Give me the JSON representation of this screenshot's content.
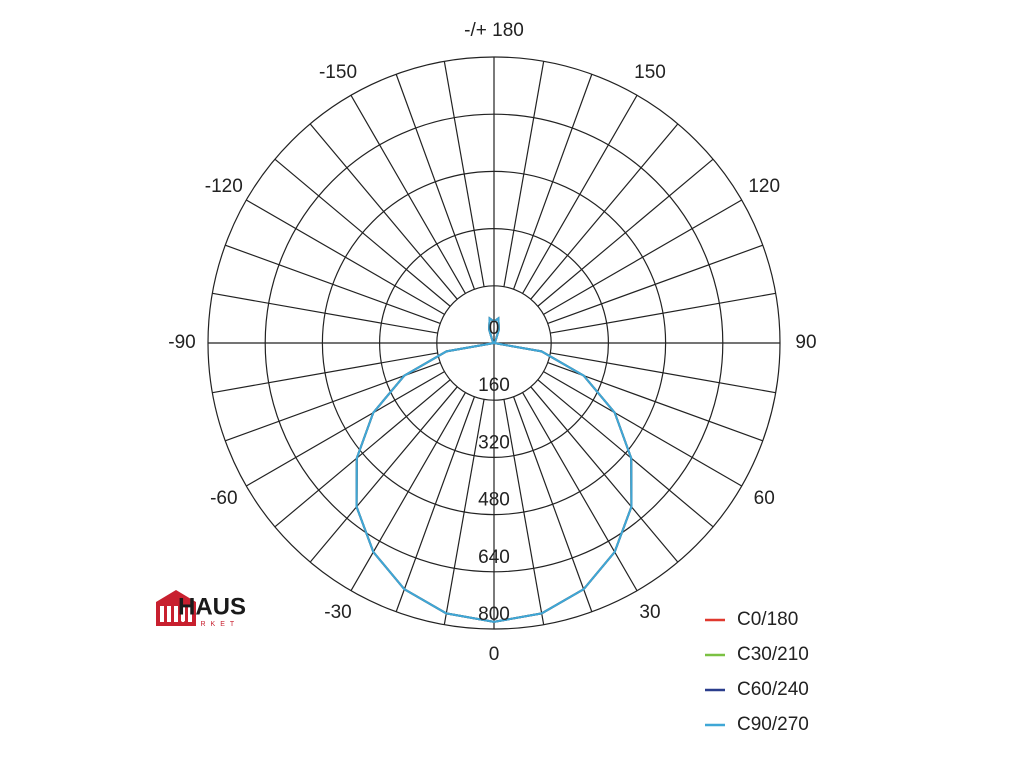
{
  "chart_data": {
    "type": "polar",
    "theta": [
      -180,
      -170,
      -160,
      -150,
      -140,
      -130,
      -120,
      -110,
      -100,
      -90,
      -80,
      -70,
      -60,
      -50,
      -40,
      -30,
      -20,
      -10,
      0,
      10,
      20,
      30,
      40,
      50,
      60,
      70,
      80,
      90,
      100,
      110,
      120,
      130,
      140,
      150,
      160,
      170,
      180
    ],
    "series": [
      {
        "name": "C0/180",
        "color": "#e0392e",
        "values": [
          60,
          70,
          40,
          10,
          5,
          3,
          2,
          1,
          0,
          0,
          135,
          267,
          390,
          501,
          598,
          675,
          733,
          768,
          780,
          768,
          733,
          675,
          598,
          501,
          390,
          267,
          135,
          0,
          0,
          1,
          2,
          3,
          5,
          10,
          40,
          70,
          60
        ]
      },
      {
        "name": "C30/210",
        "color": "#7bc143",
        "values": [
          60,
          70,
          40,
          10,
          5,
          3,
          2,
          1,
          0,
          0,
          135,
          267,
          390,
          501,
          598,
          675,
          733,
          768,
          780,
          768,
          733,
          675,
          598,
          501,
          390,
          267,
          135,
          0,
          0,
          1,
          2,
          3,
          5,
          10,
          40,
          70,
          60
        ]
      },
      {
        "name": "C60/240",
        "color": "#2a3d8c",
        "values": [
          60,
          70,
          40,
          10,
          5,
          3,
          2,
          1,
          0,
          0,
          135,
          267,
          390,
          501,
          598,
          675,
          733,
          768,
          780,
          768,
          733,
          675,
          598,
          501,
          390,
          267,
          135,
          0,
          0,
          1,
          2,
          3,
          5,
          10,
          40,
          70,
          60
        ]
      },
      {
        "name": "C90/270",
        "color": "#3fa7d6",
        "values": [
          60,
          70,
          40,
          10,
          5,
          3,
          2,
          1,
          0,
          0,
          135,
          267,
          390,
          501,
          598,
          675,
          733,
          768,
          780,
          768,
          733,
          675,
          598,
          501,
          390,
          267,
          135,
          0,
          0,
          1,
          2,
          3,
          5,
          10,
          40,
          70,
          60
        ]
      }
    ],
    "rlim": [
      0,
      800
    ],
    "rticks": [
      0,
      160,
      320,
      480,
      640,
      800
    ],
    "thetaticks": [
      0,
      30,
      60,
      90,
      120,
      150,
      {
        "value": 180,
        "label": "-/+ 180"
      },
      -150,
      -120,
      -90,
      -60,
      -30
    ],
    "theta_grid": [
      -170,
      -160,
      -150,
      -140,
      -130,
      -120,
      -110,
      -100,
      -90,
      -80,
      -70,
      -60,
      -50,
      -40,
      -30,
      -20,
      -10,
      0,
      10,
      20,
      30,
      40,
      50,
      60,
      70,
      80,
      90,
      100,
      110,
      120,
      130,
      140,
      150,
      160,
      170,
      180
    ],
    "legend": "bottom-right"
  },
  "logo": {
    "text": "HAUS",
    "subtext": "MARKET"
  }
}
